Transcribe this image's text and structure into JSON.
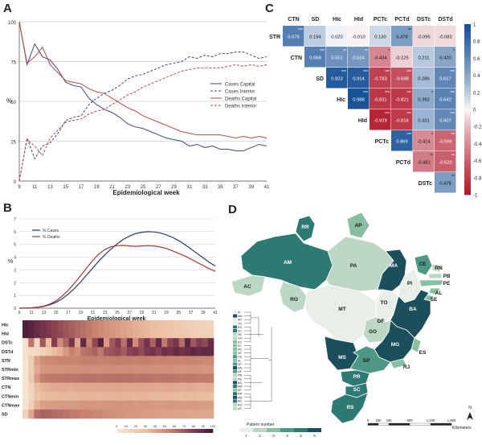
{
  "panels": {
    "a": {
      "letter": "A",
      "xlabel": "Epidemiological week",
      "ylabel": "%",
      "legend": [
        "Cases Capital",
        "Cases Interior",
        "Deaths Capital",
        "Deaths Interior"
      ]
    },
    "b": {
      "letter": "B",
      "xlabel": "Epidemiological week",
      "ylabel": "%",
      "legend": [
        "% Cases",
        "% Deaths"
      ],
      "heatmap_rows": [
        "HIc",
        "HId",
        "DSTc",
        "DSTd",
        "STR",
        "STRmin",
        "STRmax",
        "CTN",
        "CTNmin",
        "CTNmax",
        "SD"
      ],
      "scale_ticks": [
        "0",
        "10",
        "20",
        "30",
        "40",
        "50",
        "60",
        "70",
        "80",
        "90",
        "100"
      ]
    },
    "c": {
      "letter": "C",
      "col_labels": [
        "CTN",
        "SD",
        "HIc",
        "HId",
        "PCTc",
        "PCTd",
        "DSTc",
        "DSTd"
      ],
      "row_labels": [
        "STR",
        "CTN",
        "SD",
        "HIc",
        "HId",
        "PCTc",
        "PCTd",
        "DSTc"
      ],
      "colorbar_ticks": [
        "1",
        "0.8",
        "0.6",
        "0.4",
        "0.2",
        "0",
        "-0.2",
        "-0.4",
        "-0.6",
        "-0.8",
        "-1"
      ]
    },
    "d": {
      "letter": "D",
      "states": [
        "RR",
        "AP",
        "AM",
        "PA",
        "MA",
        "CE",
        "RN",
        "PB",
        "PE",
        "AL",
        "SE",
        "PI",
        "AC",
        "RO",
        "TO",
        "MT",
        "BA",
        "DF",
        "GO",
        "MG",
        "ES",
        "MS",
        "SP",
        "RJ",
        "PR",
        "SC",
        "RS"
      ],
      "legend_title": "Pattern number",
      "legend_ticks": [
        "1",
        "2",
        "3",
        "4",
        "5",
        "6"
      ],
      "scalebar_ticks": [
        "0",
        "200",
        "400",
        "800",
        "1,200",
        "1,600"
      ],
      "scalebar_unit": "Kilometers",
      "north": "N",
      "dendro_leaves": [
        "PI",
        "MA",
        "MT",
        "TO",
        "RS",
        "SC",
        "PA",
        "GO",
        "ES",
        "RJ",
        "PE",
        "SE",
        "CE",
        "AL",
        "SP",
        "MG",
        "DF",
        "RN",
        "PB",
        "BA",
        "AM",
        "AP",
        "RR",
        "MS",
        "PR",
        "RO",
        "AC"
      ]
    }
  },
  "corr_matrix": [
    [
      "0.676",
      "0.194",
      "0.020",
      "-0.010",
      "0.130",
      "0.478",
      "-0.095",
      "-0.083"
    ],
    [
      "",
      "0.668",
      "0.551",
      "0.514",
      "-0.434",
      "-0.125",
      "0.211",
      "0.420"
    ],
    [
      "",
      "",
      "0.923",
      "0.914",
      "-0.783",
      "-0.698",
      "0.286",
      "0.617"
    ],
    [
      "",
      "",
      "",
      "0.988",
      "-0.831",
      "-0.821",
      "0.392",
      "0.642"
    ],
    [
      "",
      "",
      "",
      "",
      "-0.929",
      "-0.816",
      "0.331",
      "0.607"
    ],
    [
      "",
      "",
      "",
      "",
      "",
      "0.869",
      "-0.414",
      "-0.596"
    ],
    [
      "",
      "",
      "",
      "",
      "",
      "",
      "-0.481",
      "-0.620"
    ],
    [
      "",
      "",
      "",
      "",
      "",
      "",
      "",
      "0.478"
    ]
  ],
  "corr_stars": [
    [
      "***",
      "",
      "",
      "",
      "",
      "**",
      "",
      ""
    ],
    [
      "",
      "***",
      "**",
      "**",
      "*",
      "",
      "",
      "*"
    ],
    [
      "",
      "",
      "***",
      "***",
      "***",
      "***",
      "",
      "***"
    ],
    [
      "",
      "",
      "",
      "***",
      "***",
      "***",
      "*",
      "***"
    ],
    [
      "",
      "",
      "",
      "",
      "***",
      "***",
      "",
      "***"
    ],
    [
      "",
      "",
      "",
      "",
      "",
      "***",
      "*",
      "**"
    ],
    [
      "",
      "",
      "",
      "",
      "",
      "",
      "**",
      "**"
    ],
    [
      "",
      "",
      "",
      "",
      "",
      "",
      "",
      "**"
    ]
  ],
  "chart_data": [
    {
      "type": "line",
      "x": [
        9,
        10,
        11,
        12,
        13,
        14,
        15,
        16,
        17,
        18,
        19,
        20,
        21,
        22,
        23,
        24,
        25,
        26,
        27,
        28,
        29,
        30,
        31,
        32,
        33,
        34,
        35,
        36,
        37,
        38,
        39,
        40,
        41
      ],
      "xticks": [
        9,
        11,
        13,
        15,
        17,
        19,
        21,
        23,
        25,
        27,
        29,
        31,
        33,
        35,
        37,
        39,
        41
      ],
      "ylim": [
        0,
        100
      ],
      "yticks": [
        0,
        25,
        50,
        75,
        100
      ],
      "series": [
        {
          "name": "Cases Capital",
          "color": "#3c4a78",
          "dash": false,
          "values": [
            100,
            73,
            86,
            78,
            76,
            70,
            62,
            60,
            59,
            52,
            48,
            45,
            43,
            40,
            36,
            34,
            33,
            31,
            29,
            27,
            26,
            25,
            22,
            23,
            21,
            22,
            20,
            20,
            19,
            19,
            21,
            23,
            22
          ]
        },
        {
          "name": "Cases Interior",
          "color": "#3c4a78",
          "dash": true,
          "values": [
            0,
            27,
            14,
            22,
            24,
            30,
            38,
            40,
            41,
            48,
            52,
            55,
            57,
            60,
            64,
            66,
            67,
            69,
            71,
            73,
            74,
            75,
            78,
            77,
            79,
            78,
            80,
            80,
            81,
            81,
            79,
            77,
            78
          ]
        },
        {
          "name": "Deaths Capital",
          "color": "#b24a4a",
          "dash": false,
          "values": [
            100,
            74,
            78,
            84,
            73,
            68,
            63,
            62,
            61,
            58,
            56,
            55,
            52,
            49,
            46,
            44,
            41,
            39,
            37,
            35,
            33,
            31,
            30,
            29,
            29,
            29,
            29,
            28,
            27,
            28,
            27,
            28,
            27
          ]
        },
        {
          "name": "Deaths Interior",
          "color": "#b24a4a",
          "dash": true,
          "values": [
            0,
            26,
            22,
            16,
            27,
            32,
            37,
            38,
            39,
            42,
            44,
            45,
            48,
            51,
            54,
            56,
            59,
            61,
            63,
            65,
            67,
            69,
            70,
            71,
            71,
            71,
            71,
            72,
            73,
            72,
            73,
            72,
            73
          ]
        }
      ]
    },
    {
      "type": "line",
      "x": [
        9,
        10,
        11,
        12,
        13,
        14,
        15,
        16,
        17,
        18,
        19,
        20,
        21,
        22,
        23,
        24,
        25,
        26,
        27,
        28,
        29,
        30,
        31,
        32,
        33,
        34,
        35,
        36,
        37,
        38,
        39,
        40,
        41
      ],
      "xticks": [
        9,
        11,
        13,
        15,
        17,
        19,
        21,
        23,
        25,
        27,
        29,
        31,
        33,
        35,
        37,
        39,
        41
      ],
      "ylim": [
        0,
        7
      ],
      "yticks": [
        0,
        1,
        2,
        3,
        4,
        5,
        6,
        7
      ],
      "series": [
        {
          "name": "% Cases",
          "color": "#2b3a67",
          "values": [
            0,
            0.01,
            0.03,
            0.07,
            0.14,
            0.27,
            0.46,
            0.74,
            1.1,
            1.55,
            2.05,
            2.6,
            3.15,
            3.7,
            4.2,
            4.65,
            5.05,
            5.4,
            5.65,
            5.85,
            5.95,
            6.0,
            5.98,
            5.9,
            5.75,
            5.55,
            5.3,
            5.0,
            4.65,
            4.3,
            3.95,
            3.6,
            3.3
          ]
        },
        {
          "name": "% Deaths",
          "color": "#a33a3a",
          "values": [
            0,
            0.01,
            0.03,
            0.08,
            0.17,
            0.33,
            0.58,
            0.94,
            1.4,
            1.95,
            2.55,
            3.15,
            3.75,
            4.25,
            4.6,
            4.82,
            4.9,
            4.92,
            4.88,
            4.85,
            4.88,
            4.9,
            4.88,
            4.8,
            4.68,
            4.5,
            4.3,
            4.1,
            3.85,
            3.6,
            3.35,
            3.1,
            2.9
          ]
        }
      ]
    },
    {
      "type": "heatmap",
      "rows": [
        "HIc",
        "HId",
        "DSTc",
        "DSTd",
        "STR",
        "STRmin",
        "STRmax",
        "CTN",
        "CTNmin",
        "CTNmax",
        "SD"
      ],
      "columns": 33,
      "scale": [
        0,
        100
      ],
      "values": [
        [
          97,
          93,
          89,
          85,
          81,
          78,
          74,
          70,
          67,
          64,
          61,
          58,
          55,
          52,
          49,
          46,
          44,
          41,
          39,
          36,
          34,
          32,
          30,
          28,
          26,
          24,
          22,
          21,
          19,
          18,
          16,
          15,
          14
        ],
        [
          97,
          94,
          90,
          86,
          82,
          78,
          75,
          71,
          68,
          64,
          61,
          58,
          55,
          52,
          49,
          47,
          44,
          42,
          39,
          37,
          35,
          33,
          31,
          29,
          27,
          25,
          24,
          22,
          21,
          19,
          18,
          17,
          16
        ],
        [
          5,
          60,
          12,
          70,
          30,
          80,
          50,
          65,
          85,
          40,
          90,
          55,
          75,
          95,
          45,
          70,
          80,
          60,
          88,
          50,
          72,
          85,
          66,
          90,
          58,
          77,
          83,
          62,
          92,
          70,
          80,
          75,
          88
        ],
        [
          5,
          8,
          10,
          15,
          22,
          30,
          35,
          45,
          55,
          50,
          60,
          62,
          65,
          58,
          70,
          72,
          75,
          68,
          78,
          80,
          74,
          82,
          85,
          79,
          88,
          84,
          90,
          86,
          88,
          92,
          89,
          91,
          90
        ],
        [
          2,
          20,
          42,
          50,
          52,
          53,
          54,
          55,
          54,
          55,
          56,
          56,
          56,
          55,
          56,
          56,
          57,
          56,
          56,
          55,
          56,
          56,
          55,
          54,
          55,
          55,
          54,
          53,
          54,
          54,
          53,
          52,
          53
        ],
        [
          2,
          18,
          38,
          45,
          47,
          48,
          48,
          49,
          48,
          49,
          50,
          50,
          50,
          49,
          50,
          50,
          51,
          50,
          50,
          49,
          50,
          50,
          49,
          48,
          49,
          49,
          48,
          47,
          48,
          48,
          47,
          46,
          47
        ],
        [
          2,
          22,
          45,
          56,
          58,
          59,
          59,
          60,
          59,
          60,
          61,
          61,
          61,
          60,
          61,
          61,
          62,
          61,
          61,
          60,
          61,
          61,
          60,
          59,
          60,
          60,
          59,
          58,
          59,
          59,
          58,
          57,
          58
        ],
        [
          2,
          15,
          30,
          35,
          37,
          38,
          38,
          39,
          38,
          39,
          40,
          40,
          40,
          39,
          40,
          40,
          41,
          40,
          40,
          39,
          40,
          40,
          39,
          38,
          39,
          39,
          38,
          37,
          38,
          38,
          37,
          36,
          37
        ],
        [
          2,
          12,
          26,
          30,
          32,
          32,
          33,
          33,
          32,
          33,
          34,
          34,
          34,
          33,
          34,
          34,
          35,
          34,
          34,
          33,
          34,
          34,
          33,
          32,
          33,
          33,
          32,
          31,
          32,
          32,
          31,
          30,
          31
        ],
        [
          2,
          18,
          36,
          42,
          44,
          45,
          45,
          46,
          45,
          46,
          47,
          47,
          47,
          46,
          47,
          47,
          48,
          47,
          47,
          46,
          47,
          47,
          46,
          45,
          46,
          46,
          45,
          44,
          45,
          45,
          44,
          43,
          44
        ],
        [
          15,
          40,
          62,
          66,
          65,
          63,
          62,
          60,
          58,
          57,
          55,
          54,
          53,
          52,
          50,
          49,
          48,
          47,
          46,
          46,
          45,
          44,
          44,
          43,
          42,
          42,
          41,
          41,
          40,
          40,
          40,
          39,
          39
        ]
      ]
    }
  ],
  "map_patterns": {
    "RR": 5,
    "AP": 3,
    "AM": 5,
    "PA": 2,
    "MA": 6,
    "CE": 4,
    "RN": 2,
    "PB": 2,
    "PE": 3,
    "AL": 3,
    "SE": 3,
    "PI": 1,
    "AC": 2,
    "RO": 2,
    "TO": 1,
    "MT": 1,
    "BA": 6,
    "DF": 4,
    "GO": 2,
    "MG": 6,
    "ES": 3,
    "MS": 6,
    "SP": 4,
    "RJ": 3,
    "PR": 5,
    "SC": 5,
    "RS": 5
  },
  "pattern_colors": [
    "#e8eee8",
    "#bcd8c5",
    "#88bea2",
    "#4e9784",
    "#2c7a73",
    "#1b4f5c"
  ]
}
